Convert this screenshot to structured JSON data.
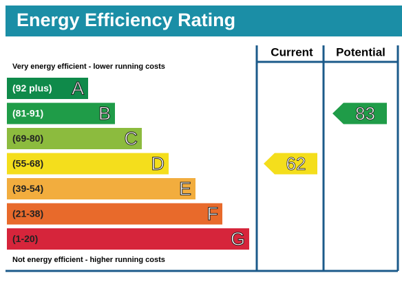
{
  "header": {
    "title": "Energy Efficiency Rating"
  },
  "table": {
    "headers": [
      "Current",
      "Potential"
    ],
    "top_note": "Very energy efficient - lower running costs",
    "bottom_note": "Not energy efficient - higher running costs",
    "bands": [
      {
        "range": "(92 plus)",
        "letter": "A",
        "color": "#0f8a4a"
      },
      {
        "range": "(81-91)",
        "letter": "B",
        "color": "#1f9c48"
      },
      {
        "range": "(69-80)",
        "letter": "C",
        "color": "#8cbb3e"
      },
      {
        "range": "(55-68)",
        "letter": "D",
        "color": "#f4de1c"
      },
      {
        "range": "(39-54)",
        "letter": "E",
        "color": "#f2ad3e"
      },
      {
        "range": "(21-38)",
        "letter": "F",
        "color": "#e86a2b"
      },
      {
        "range": "(1-20)",
        "letter": "G",
        "color": "#d6253b"
      }
    ],
    "current": {
      "value": 62,
      "band": 3,
      "color": "#f4de1c"
    },
    "potential": {
      "value": 83,
      "band": 1,
      "color": "#1f9c48"
    }
  }
}
